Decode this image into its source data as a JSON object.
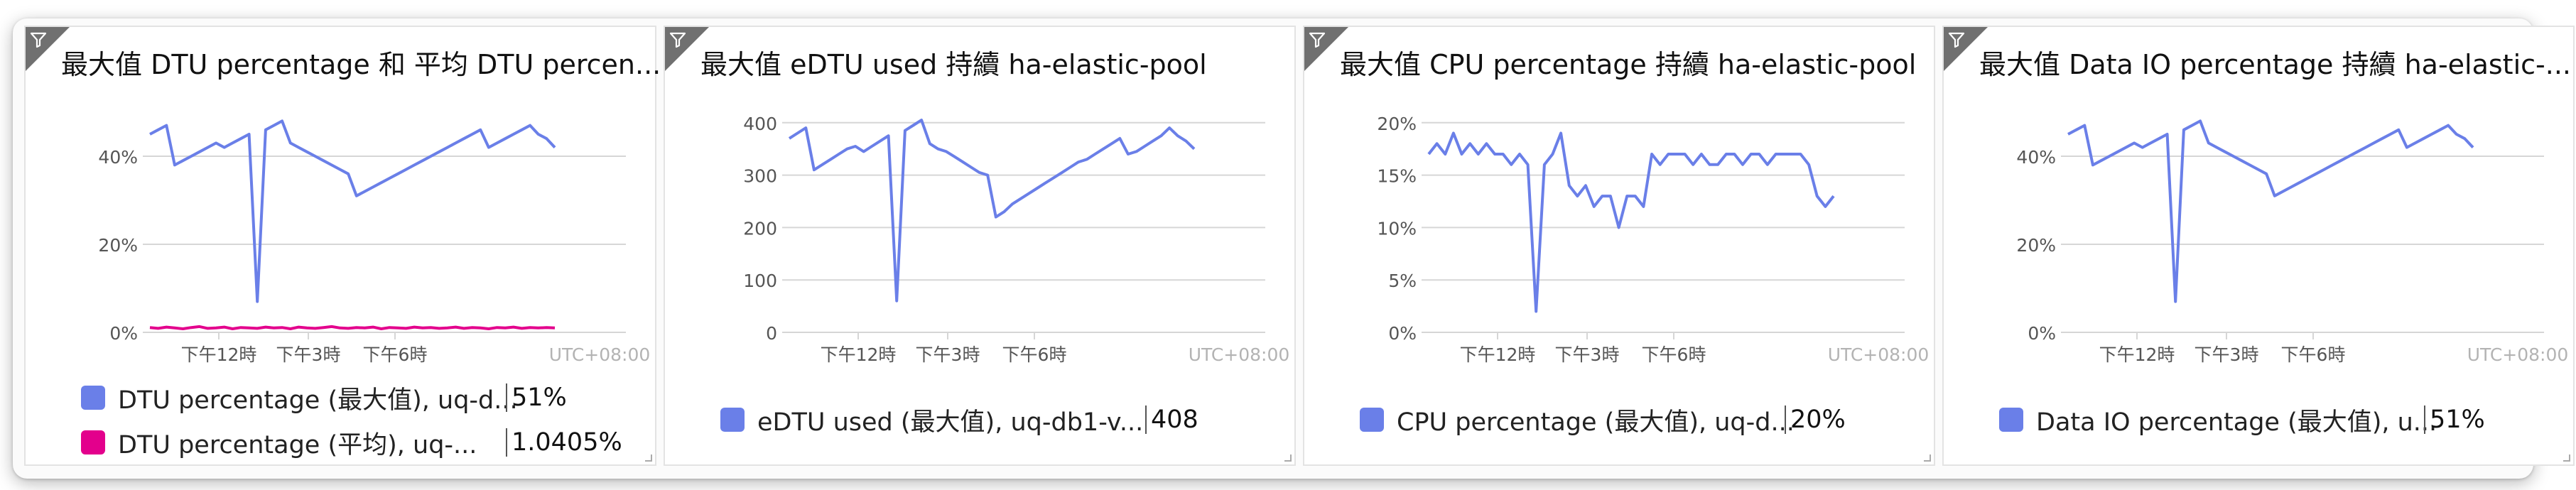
{
  "colors": {
    "series_blue": "#6a7fe8",
    "series_pink": "#e3008c",
    "grid": "#d6d6d6",
    "axis_text": "#555555",
    "utc_text": "#b3b3b3"
  },
  "icons": {
    "tile_corner": "filter-funnel-icon"
  },
  "tiles": [
    {
      "title": "最大值 DTU percentage 和 平均 DTU percen...",
      "legend": [
        {
          "label": "DTU percentage (最大值), uq-d...",
          "value": "51%",
          "color": "#6a7fe8"
        },
        {
          "label": "DTU percentage (平均), uq-...",
          "value": "1.0405%",
          "color": "#e3008c"
        }
      ]
    },
    {
      "title": "最大值 eDTU used 持續 ha-elastic-pool",
      "legend": [
        {
          "label": "eDTU used (最大值), uq-db1-v...",
          "value": "408",
          "color": "#6a7fe8"
        }
      ]
    },
    {
      "title": "最大值 CPU percentage 持續 ha-elastic-pool",
      "legend": [
        {
          "label": "CPU percentage (最大值), uq-d...",
          "value": "20%",
          "color": "#6a7fe8"
        }
      ]
    },
    {
      "title": "最大值 Data IO percentage 持續 ha-elastic-...",
      "legend": [
        {
          "label": "Data IO percentage (最大值), u...",
          "value": "51%",
          "color": "#6a7fe8"
        }
      ]
    }
  ],
  "chart_data": [
    {
      "type": "line",
      "x_tick_labels": [
        "下午12時",
        "下午3時",
        "下午6時"
      ],
      "timezone_label": "UTC+08:00",
      "y_tick_labels": [
        "0%",
        "20%",
        "40%"
      ],
      "ylim": [
        0,
        50
      ],
      "grid": true,
      "x": [
        0,
        1,
        2,
        3,
        4,
        5,
        6,
        7,
        8,
        9,
        10,
        11,
        12,
        13,
        14,
        15,
        16,
        17,
        18,
        19,
        20,
        21,
        22,
        23,
        24,
        25,
        26,
        27,
        28,
        29,
        30,
        31,
        32,
        33,
        34,
        35,
        36,
        37,
        38,
        39,
        40,
        41,
        42,
        43,
        44,
        45,
        46,
        47,
        48,
        49
      ],
      "series": [
        {
          "name": "DTU percentage (最大值), uq-d...",
          "color": "#6a7fe8",
          "values": [
            45,
            46,
            47,
            38,
            39,
            40,
            41,
            42,
            43,
            42,
            43,
            44,
            45,
            7,
            46,
            47,
            48,
            43,
            42,
            41,
            40,
            39,
            38,
            37,
            36,
            31,
            32,
            33,
            34,
            35,
            36,
            37,
            38,
            39,
            40,
            41,
            42,
            43,
            44,
            45,
            46,
            42,
            43,
            44,
            45,
            46,
            47,
            45,
            44,
            42
          ]
        },
        {
          "name": "DTU percentage (平均), uq-...",
          "color": "#e3008c",
          "values": [
            1.1,
            0.9,
            1.2,
            1.0,
            0.8,
            1.1,
            1.3,
            0.9,
            1.0,
            1.2,
            0.8,
            1.1,
            1.0,
            0.9,
            1.2,
            1.0,
            1.1,
            0.8,
            1.2,
            1.0,
            0.9,
            1.1,
            1.3,
            1.0,
            0.9,
            1.1,
            1.0,
            1.2,
            0.8,
            1.1,
            1.0,
            0.9,
            1.2,
            1.0,
            1.1,
            0.9,
            1.0,
            1.2,
            0.9,
            1.1,
            1.0,
            0.8,
            1.1,
            1.0,
            1.2,
            0.9,
            1.1,
            1.0,
            1.1,
            1.0
          ]
        }
      ]
    },
    {
      "type": "line",
      "x_tick_labels": [
        "下午12時",
        "下午3時",
        "下午6時"
      ],
      "timezone_label": "UTC+08:00",
      "y_tick_labels": [
        "0",
        "100",
        "200",
        "300",
        "400"
      ],
      "ylim": [
        0,
        420
      ],
      "grid": true,
      "x": [
        0,
        1,
        2,
        3,
        4,
        5,
        6,
        7,
        8,
        9,
        10,
        11,
        12,
        13,
        14,
        15,
        16,
        17,
        18,
        19,
        20,
        21,
        22,
        23,
        24,
        25,
        26,
        27,
        28,
        29,
        30,
        31,
        32,
        33,
        34,
        35,
        36,
        37,
        38,
        39,
        40,
        41,
        42,
        43,
        44,
        45,
        46,
        47,
        48,
        49
      ],
      "series": [
        {
          "name": "eDTU used (最大值), uq-db1-v...",
          "color": "#6a7fe8",
          "values": [
            370,
            380,
            390,
            310,
            320,
            330,
            340,
            350,
            355,
            345,
            355,
            365,
            375,
            60,
            385,
            395,
            405,
            360,
            350,
            345,
            335,
            325,
            315,
            305,
            300,
            220,
            230,
            245,
            255,
            265,
            275,
            285,
            295,
            305,
            315,
            325,
            330,
            340,
            350,
            360,
            370,
            340,
            345,
            355,
            365,
            375,
            390,
            375,
            365,
            350
          ]
        }
      ]
    },
    {
      "type": "line",
      "x_tick_labels": [
        "下午12時",
        "下午3時",
        "下午6時"
      ],
      "timezone_label": "UTC+08:00",
      "y_tick_labels": [
        "0%",
        "5%",
        "10%",
        "15%",
        "20%"
      ],
      "ylim": [
        0,
        21
      ],
      "grid": true,
      "x": [
        0,
        1,
        2,
        3,
        4,
        5,
        6,
        7,
        8,
        9,
        10,
        11,
        12,
        13,
        14,
        15,
        16,
        17,
        18,
        19,
        20,
        21,
        22,
        23,
        24,
        25,
        26,
        27,
        28,
        29,
        30,
        31,
        32,
        33,
        34,
        35,
        36,
        37,
        38,
        39,
        40,
        41,
        42,
        43,
        44,
        45,
        46,
        47,
        48,
        49
      ],
      "series": [
        {
          "name": "CPU percentage (最大值), uq-d...",
          "color": "#6a7fe8",
          "values": [
            17,
            18,
            17,
            19,
            17,
            18,
            17,
            18,
            17,
            17,
            16,
            17,
            16,
            2,
            16,
            17,
            19,
            14,
            13,
            14,
            12,
            13,
            13,
            10,
            13,
            13,
            12,
            17,
            16,
            17,
            17,
            17,
            16,
            17,
            16,
            16,
            17,
            17,
            16,
            17,
            17,
            16,
            17,
            17,
            17,
            17,
            16,
            13,
            12,
            13
          ]
        }
      ]
    },
    {
      "type": "line",
      "x_tick_labels": [
        "下午12時",
        "下午3時",
        "下午6時"
      ],
      "timezone_label": "UTC+08:00",
      "y_tick_labels": [
        "0%",
        "20%",
        "40%"
      ],
      "ylim": [
        0,
        50
      ],
      "grid": true,
      "x": [
        0,
        1,
        2,
        3,
        4,
        5,
        6,
        7,
        8,
        9,
        10,
        11,
        12,
        13,
        14,
        15,
        16,
        17,
        18,
        19,
        20,
        21,
        22,
        23,
        24,
        25,
        26,
        27,
        28,
        29,
        30,
        31,
        32,
        33,
        34,
        35,
        36,
        37,
        38,
        39,
        40,
        41,
        42,
        43,
        44,
        45,
        46,
        47,
        48,
        49
      ],
      "series": [
        {
          "name": "Data IO percentage (最大值), u...",
          "color": "#6a7fe8",
          "values": [
            45,
            46,
            47,
            38,
            39,
            40,
            41,
            42,
            43,
            42,
            43,
            44,
            45,
            7,
            46,
            47,
            48,
            43,
            42,
            41,
            40,
            39,
            38,
            37,
            36,
            31,
            32,
            33,
            34,
            35,
            36,
            37,
            38,
            39,
            40,
            41,
            42,
            43,
            44,
            45,
            46,
            42,
            43,
            44,
            45,
            46,
            47,
            45,
            44,
            42
          ]
        }
      ]
    }
  ]
}
